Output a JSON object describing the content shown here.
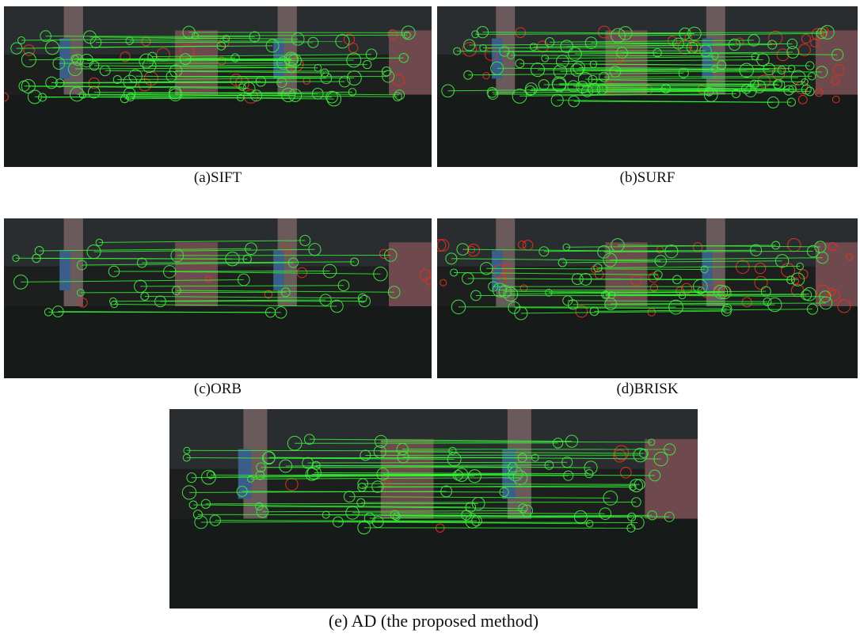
{
  "panels": [
    {
      "caption": "(a)SIFT"
    },
    {
      "caption": "(b)SURF"
    },
    {
      "caption": "(c)ORB"
    },
    {
      "caption": "(d)BRISK"
    },
    {
      "caption": "(e) AD (the proposed method)"
    }
  ]
}
